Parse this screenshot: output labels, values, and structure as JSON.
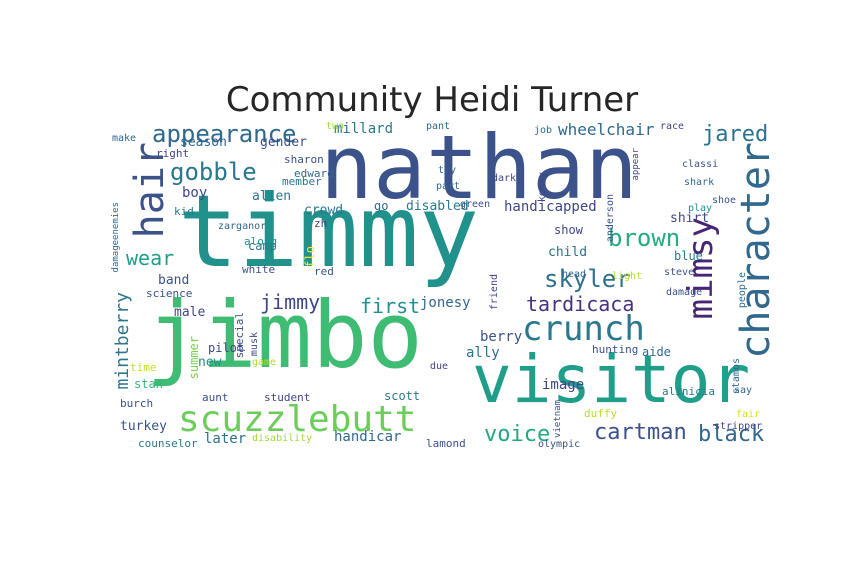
{
  "title": "Community Heidi Turner",
  "words": [
    {
      "text": "nathan",
      "color": "#3b528b"
    },
    {
      "text": "timmy",
      "color": "#21918c"
    },
    {
      "text": "jimbo",
      "color": "#3fbc73"
    },
    {
      "text": "visitor",
      "color": "#1f9e89"
    },
    {
      "text": "scuzzlebutt",
      "color": "#6ccd5a"
    },
    {
      "text": "character",
      "color": "#31688e"
    },
    {
      "text": "crunch",
      "color": "#2a788e"
    },
    {
      "text": "mimsy",
      "color": "#482475"
    },
    {
      "text": "hair",
      "color": "#3b528b"
    },
    {
      "text": "appearance",
      "color": "#31688e"
    },
    {
      "text": "gobble",
      "color": "#2a788e"
    },
    {
      "text": "skyler",
      "color": "#2c728e"
    },
    {
      "text": "brown",
      "color": "#25ab82"
    },
    {
      "text": "jared",
      "color": "#2c728e"
    },
    {
      "text": "cartman",
      "color": "#3b528b"
    },
    {
      "text": "black",
      "color": "#31688e"
    },
    {
      "text": "voice",
      "color": "#22a884"
    },
    {
      "text": "mintberry",
      "color": "#2a788e"
    },
    {
      "text": "tardicaca",
      "color": "#46327e"
    },
    {
      "text": "first",
      "color": "#21918c"
    },
    {
      "text": "jimmy",
      "color": "#404688"
    },
    {
      "text": "wear",
      "color": "#1f9e89"
    },
    {
      "text": "wheelchair",
      "color": "#31688e"
    },
    {
      "text": "handicapped",
      "color": "#404688"
    },
    {
      "text": "jonesy",
      "color": "#31688e"
    },
    {
      "text": "berry",
      "color": "#3b528b"
    },
    {
      "text": "ally",
      "color": "#2c728e"
    },
    {
      "text": "image",
      "color": "#404688"
    },
    {
      "text": "handicar",
      "color": "#31688e"
    },
    {
      "text": "later",
      "color": "#2c728e"
    },
    {
      "text": "turkey",
      "color": "#3b528b"
    },
    {
      "text": "millard",
      "color": "#2a788e"
    },
    {
      "text": "season",
      "color": "#31688e"
    },
    {
      "text": "gender",
      "color": "#3b528b"
    },
    {
      "text": "boy",
      "color": "#404688"
    },
    {
      "text": "alien",
      "color": "#2a788e"
    },
    {
      "text": "crowd",
      "color": "#2a788e"
    },
    {
      "text": "disabled",
      "color": "#2a788e"
    },
    {
      "text": "band",
      "color": "#3b528b"
    },
    {
      "text": "male",
      "color": "#404688"
    },
    {
      "text": "child",
      "color": "#2c728e"
    },
    {
      "text": "show",
      "color": "#404688"
    },
    {
      "text": "blue",
      "color": "#2a788e"
    },
    {
      "text": "shirt",
      "color": "#404688"
    },
    {
      "text": "summer",
      "color": "#7ad151"
    },
    {
      "text": "new",
      "color": "#21918c"
    },
    {
      "text": "pilot",
      "color": "#404688"
    },
    {
      "text": "stan",
      "color": "#35b779"
    },
    {
      "text": "time",
      "color": "#c2df23"
    },
    {
      "text": "burch",
      "color": "#3b528b"
    },
    {
      "text": "counselor",
      "color": "#2a788e"
    },
    {
      "text": "scott",
      "color": "#2a788e"
    },
    {
      "text": "aunt",
      "color": "#3b528b"
    },
    {
      "text": "student",
      "color": "#404688"
    },
    {
      "text": "disability",
      "color": "#a0da39"
    },
    {
      "text": "duffy",
      "color": "#b5de2b"
    },
    {
      "text": "lamond",
      "color": "#3b528b"
    },
    {
      "text": "olympic",
      "color": "#3b528b"
    },
    {
      "text": "aide",
      "color": "#31688e"
    },
    {
      "text": "alinicia",
      "color": "#2a788e"
    },
    {
      "text": "hunting",
      "color": "#3b528b"
    },
    {
      "text": "camp",
      "color": "#2a788e"
    },
    {
      "text": "white",
      "color": "#3b528b"
    },
    {
      "text": "along",
      "color": "#21918c"
    },
    {
      "text": "science",
      "color": "#3b528b"
    },
    {
      "text": "special",
      "color": "#3b528b"
    },
    {
      "text": "go",
      "color": "#31688e"
    },
    {
      "text": "kid",
      "color": "#2a788e"
    },
    {
      "text": "sharon",
      "color": "#3b528b"
    },
    {
      "text": "member",
      "color": "#2a788e"
    },
    {
      "text": "edward",
      "color": "#31688e"
    },
    {
      "text": "right",
      "color": "#404688"
    },
    {
      "text": "make",
      "color": "#31688e"
    },
    {
      "text": "two",
      "color": "#a0da39"
    },
    {
      "text": "pant",
      "color": "#31688e"
    },
    {
      "text": "job",
      "color": "#31688e"
    },
    {
      "text": "race",
      "color": "#404688"
    },
    {
      "text": "classi",
      "color": "#3b528b"
    },
    {
      "text": "shark",
      "color": "#31688e"
    },
    {
      "text": "shoe",
      "color": "#3b528b"
    },
    {
      "text": "play",
      "color": "#21918c"
    },
    {
      "text": "steve",
      "color": "#3b528b"
    },
    {
      "text": "damage",
      "color": "#3b528b"
    },
    {
      "text": "people",
      "color": "#2c728e"
    },
    {
      "text": "head",
      "color": "#31688e"
    },
    {
      "text": "friend",
      "color": "#404688"
    },
    {
      "text": "light",
      "color": "#b5de2b"
    },
    {
      "text": "anderson",
      "color": "#3b528b"
    },
    {
      "text": "dark",
      "color": "#404688"
    },
    {
      "text": "green",
      "color": "#3b528b"
    },
    {
      "text": "kenny",
      "color": "#404688"
    },
    {
      "text": "try",
      "color": "#31688e"
    },
    {
      "text": "part",
      "color": "#31688e"
    },
    {
      "text": "flo",
      "color": "#fde725"
    },
    {
      "text": "red",
      "color": "#3b528b"
    },
    {
      "text": "zh",
      "color": "#404688"
    },
    {
      "text": "zarganor",
      "color": "#31688e"
    },
    {
      "text": "stamos",
      "color": "#31688e"
    },
    {
      "text": "say",
      "color": "#31688e"
    },
    {
      "text": "fair",
      "color": "#d8e219"
    },
    {
      "text": "stripper",
      "color": "#404688"
    },
    {
      "text": "due",
      "color": "#404688"
    },
    {
      "text": "game",
      "color": "#b5de2b"
    },
    {
      "text": "musk",
      "color": "#404688"
    },
    {
      "text": "damageenemies",
      "color": "#31688e"
    },
    {
      "text": "appear",
      "color": "#404688"
    },
    {
      "text": "vietnam",
      "color": "#3b528b"
    }
  ]
}
